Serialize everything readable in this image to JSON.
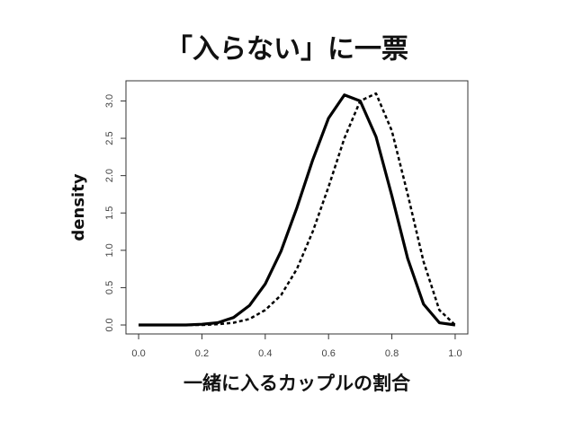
{
  "chart_data": {
    "type": "line",
    "title": "「入らない」に一票",
    "x_label": "一緒に入るカップルの割合",
    "y_label": "density",
    "x": [
      0,
      0.05,
      0.1,
      0.15,
      0.2,
      0.25,
      0.3,
      0.35,
      0.4,
      0.45,
      0.5,
      0.55,
      0.6,
      0.65,
      0.7,
      0.75,
      0.8,
      0.85,
      0.9,
      0.95,
      1.0
    ],
    "series": [
      {
        "color": "#000000",
        "dash": "solid",
        "values": [
          0,
          0,
          0,
          0,
          0.01,
          0.03,
          0.1,
          0.26,
          0.55,
          0.99,
          1.57,
          2.21,
          2.77,
          3.08,
          3.0,
          2.52,
          1.73,
          0.89,
          0.28,
          0.03,
          0
        ]
      },
      {
        "color": "#000000",
        "dash": "dotted",
        "values": [
          0,
          0,
          0,
          0,
          0,
          0.01,
          0.03,
          0.08,
          0.2,
          0.4,
          0.75,
          1.25,
          1.85,
          2.5,
          3.0,
          3.1,
          2.6,
          1.75,
          0.85,
          0.2,
          0
        ]
      }
    ],
    "xlim": [
      -0.04,
      1.04
    ],
    "ylim": [
      -0.12,
      3.27
    ],
    "xticks": [
      {
        "value": 0,
        "label": "0.0"
      },
      {
        "value": 0.2,
        "label": "0.2"
      },
      {
        "value": 0.4,
        "label": "0.4"
      },
      {
        "value": 0.6,
        "label": "0.6"
      },
      {
        "value": 0.8,
        "label": "0.8"
      },
      {
        "value": 1,
        "label": "1.0"
      }
    ],
    "yticks": [
      {
        "value": 0,
        "label": "0.0"
      },
      {
        "value": 0.5,
        "label": "0.5"
      },
      {
        "value": 1,
        "label": "1.0"
      },
      {
        "value": 1.5,
        "label": "1.5"
      },
      {
        "value": 2,
        "label": "2.0"
      },
      {
        "value": 2.5,
        "label": "2.5"
      },
      {
        "value": 3,
        "label": "3.0"
      }
    ]
  }
}
